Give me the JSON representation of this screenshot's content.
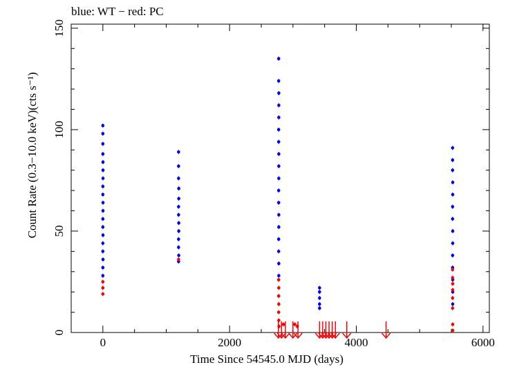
{
  "chart_data": {
    "type": "scatter",
    "title": "blue: WT − red: PC",
    "xlabel": "Time Since 54545.0 MJD (days)",
    "ylabel": "Count Rate (0.3−10.0 keV)(cts s⁻¹)",
    "xlim": [
      -500,
      6100
    ],
    "ylim": [
      0,
      152
    ],
    "xticks": [
      0,
      2000,
      4000,
      6000
    ],
    "yticks": [
      0,
      50,
      100,
      150
    ],
    "grid": false,
    "colors": {
      "WT": "#0000ff",
      "PC": "#ff0000"
    },
    "series": [
      {
        "name": "WT",
        "color": "#0000ff",
        "points": [
          {
            "x": 0,
            "y": 102
          },
          {
            "x": 0,
            "y": 98
          },
          {
            "x": 0,
            "y": 93
          },
          {
            "x": 0,
            "y": 88
          },
          {
            "x": 2,
            "y": 84
          },
          {
            "x": 2,
            "y": 80
          },
          {
            "x": 2,
            "y": 76
          },
          {
            "x": 0,
            "y": 72
          },
          {
            "x": 0,
            "y": 68
          },
          {
            "x": 2,
            "y": 64
          },
          {
            "x": 2,
            "y": 60
          },
          {
            "x": 0,
            "y": 56
          },
          {
            "x": 0,
            "y": 52
          },
          {
            "x": 2,
            "y": 48
          },
          {
            "x": 0,
            "y": 44
          },
          {
            "x": 0,
            "y": 40
          },
          {
            "x": 2,
            "y": 36
          },
          {
            "x": 0,
            "y": 32
          },
          {
            "x": 0,
            "y": 28
          },
          {
            "x": 1195,
            "y": 89
          },
          {
            "x": 1195,
            "y": 82
          },
          {
            "x": 1195,
            "y": 76
          },
          {
            "x": 1198,
            "y": 71
          },
          {
            "x": 1198,
            "y": 66
          },
          {
            "x": 1195,
            "y": 62
          },
          {
            "x": 1195,
            "y": 58
          },
          {
            "x": 1198,
            "y": 54
          },
          {
            "x": 1198,
            "y": 50
          },
          {
            "x": 1195,
            "y": 46
          },
          {
            "x": 1195,
            "y": 42
          },
          {
            "x": 1198,
            "y": 38
          },
          {
            "x": 1195,
            "y": 35
          },
          {
            "x": 2775,
            "y": 135
          },
          {
            "x": 2775,
            "y": 124
          },
          {
            "x": 2777,
            "y": 118
          },
          {
            "x": 2777,
            "y": 112
          },
          {
            "x": 2777,
            "y": 106
          },
          {
            "x": 2775,
            "y": 100
          },
          {
            "x": 2775,
            "y": 94
          },
          {
            "x": 2777,
            "y": 88
          },
          {
            "x": 2777,
            "y": 82
          },
          {
            "x": 2777,
            "y": 76
          },
          {
            "x": 2775,
            "y": 70
          },
          {
            "x": 2775,
            "y": 64
          },
          {
            "x": 2777,
            "y": 58
          },
          {
            "x": 2777,
            "y": 52
          },
          {
            "x": 2775,
            "y": 46
          },
          {
            "x": 2775,
            "y": 40
          },
          {
            "x": 2777,
            "y": 34
          },
          {
            "x": 2777,
            "y": 28
          },
          {
            "x": 3420,
            "y": 22
          },
          {
            "x": 3420,
            "y": 20
          },
          {
            "x": 3420,
            "y": 17
          },
          {
            "x": 3420,
            "y": 14
          },
          {
            "x": 3420,
            "y": 12
          },
          {
            "x": 5520,
            "y": 91
          },
          {
            "x": 5520,
            "y": 85
          },
          {
            "x": 5520,
            "y": 80
          },
          {
            "x": 5522,
            "y": 74
          },
          {
            "x": 5522,
            "y": 68
          },
          {
            "x": 5520,
            "y": 62
          },
          {
            "x": 5520,
            "y": 56
          },
          {
            "x": 5522,
            "y": 50
          },
          {
            "x": 5522,
            "y": 44
          },
          {
            "x": 5520,
            "y": 38
          },
          {
            "x": 5520,
            "y": 32
          },
          {
            "x": 5522,
            "y": 26
          },
          {
            "x": 5522,
            "y": 20
          },
          {
            "x": 5522,
            "y": 14
          }
        ]
      },
      {
        "name": "PC",
        "color": "#ff0000",
        "points": [
          {
            "x": 0,
            "y": 25
          },
          {
            "x": 0,
            "y": 22
          },
          {
            "x": 0,
            "y": 19
          },
          {
            "x": 1195,
            "y": 36
          },
          {
            "x": 2775,
            "y": 26
          },
          {
            "x": 2777,
            "y": 22
          },
          {
            "x": 2775,
            "y": 18
          },
          {
            "x": 2777,
            "y": 14
          },
          {
            "x": 2775,
            "y": 10
          },
          {
            "x": 2777,
            "y": 6
          },
          {
            "x": 2780,
            "y": 3
          },
          {
            "x": 2850,
            "y": 4
          },
          {
            "x": 3030,
            "y": 4
          },
          {
            "x": 3070,
            "y": 3
          },
          {
            "x": 5520,
            "y": 31
          },
          {
            "x": 5520,
            "y": 27
          },
          {
            "x": 5522,
            "y": 24
          },
          {
            "x": 5522,
            "y": 21
          },
          {
            "x": 5520,
            "y": 17
          },
          {
            "x": 5520,
            "y": 12
          },
          {
            "x": 5522,
            "y": 4
          },
          {
            "x": 5522,
            "y": 1
          }
        ],
        "upper_limits": [
          {
            "x": 2770,
            "y": 4.5
          },
          {
            "x": 2820,
            "y": 4.5
          },
          {
            "x": 2880,
            "y": 4.5
          },
          {
            "x": 3000,
            "y": 4.5
          },
          {
            "x": 3080,
            "y": 4.5
          },
          {
            "x": 3420,
            "y": 4.5
          },
          {
            "x": 3470,
            "y": 4.5
          },
          {
            "x": 3520,
            "y": 4.5
          },
          {
            "x": 3570,
            "y": 4.5
          },
          {
            "x": 3620,
            "y": 4.5
          },
          {
            "x": 3670,
            "y": 4.5
          },
          {
            "x": 3850,
            "y": 4.5
          },
          {
            "x": 4470,
            "y": 4.5
          }
        ]
      }
    ]
  }
}
